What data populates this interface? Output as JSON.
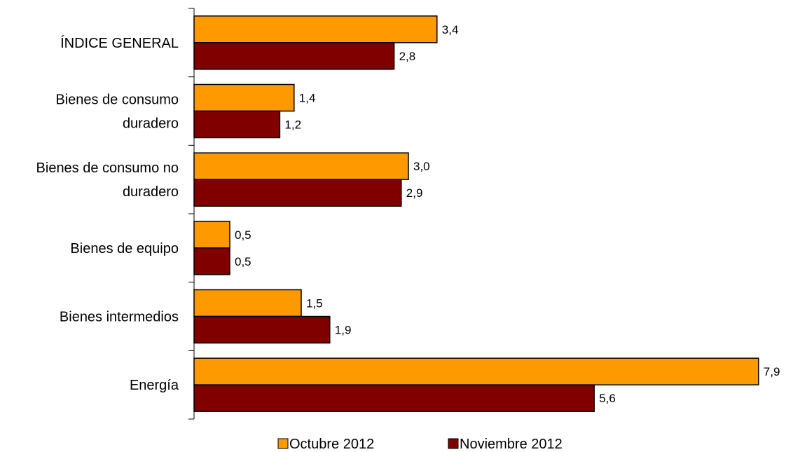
{
  "chart_data": {
    "type": "bar",
    "orientation": "horizontal",
    "categories": [
      [
        "ÍNDICE GENERAL"
      ],
      [
        "Bienes de consumo",
        "duradero"
      ],
      [
        "Bienes de consumo no",
        "duradero"
      ],
      [
        "Bienes de equipo"
      ],
      [
        "Bienes intermedios"
      ],
      [
        "Energía"
      ]
    ],
    "series": [
      {
        "name": "Octubre 2012",
        "color": "#FF9900",
        "values": [
          3.4,
          1.4,
          3.0,
          0.5,
          1.5,
          7.9
        ],
        "value_labels": [
          "3,4",
          "1,4",
          "3,0",
          "0,5",
          "1,5",
          "7,9"
        ]
      },
      {
        "name": "Noviembre 2012",
        "color": "#800000",
        "values": [
          2.8,
          1.2,
          2.9,
          0.5,
          1.9,
          5.6
        ],
        "value_labels": [
          "2,8",
          "1,2",
          "2,9",
          "0,5",
          "1,9",
          "5,6"
        ]
      }
    ],
    "xlim": [
      0,
      8
    ],
    "grid": false,
    "legend_position": "bottom"
  }
}
